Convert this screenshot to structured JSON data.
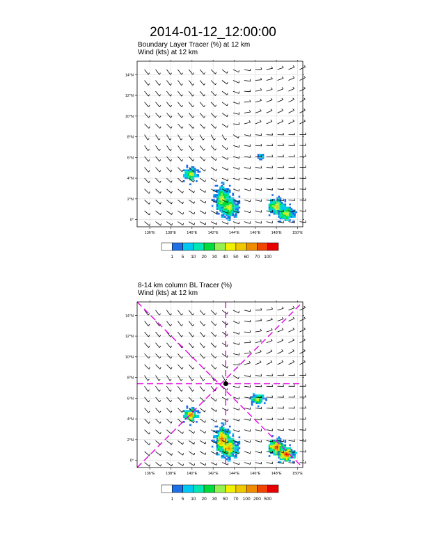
{
  "title": "2014-01-12_12:00:00",
  "colors": {
    "palette": [
      "#ffffff",
      "#1e6ee6",
      "#00c8f0",
      "#00e6b4",
      "#00dc3c",
      "#96f050",
      "#f0f000",
      "#f0c800",
      "#f08c00",
      "#f04600",
      "#e60000"
    ],
    "vortex": "#e100e1",
    "wind": "#000000",
    "grid": "#c8c8c8"
  },
  "panels": [
    {
      "id": "top",
      "subtitle1": "Boundary Layer Tracer   (%)     at   12 km",
      "subtitle2": "Wind   (kts)     at  12 km",
      "lon_ticks": [
        "136°E",
        "138°E",
        "140°E",
        "142°E",
        "144°E",
        "146°E",
        "148°E",
        "150°E"
      ],
      "lat_ticks": [
        "0°",
        "2°N",
        "4°N",
        "6°N",
        "8°N",
        "10°N",
        "12°N",
        "14°N"
      ],
      "colorbar_labels": [
        "1",
        "5",
        "10",
        "20",
        "30",
        "40",
        "50",
        "60",
        "70",
        "100"
      ],
      "show_vortex": false
    },
    {
      "id": "bottom",
      "subtitle1": "8-14 km column BL Tracer   (%)",
      "subtitle2": "Wind   (kts)     at  12 km",
      "lon_ticks": [
        "136°E",
        "138°E",
        "140°E",
        "142°E",
        "144°E",
        "146°E",
        "148°E",
        "150°E"
      ],
      "lat_ticks": [
        "0°",
        "2°N",
        "4°N",
        "6°N",
        "8°N",
        "10°N",
        "12°N",
        "14°N"
      ],
      "colorbar_labels": [
        "1",
        "5",
        "10",
        "20",
        "30",
        "50",
        "70",
        "100",
        "200",
        "500"
      ],
      "show_vortex": true
    }
  ],
  "chart_data": {
    "type": "heatmap",
    "lon_range": [
      134.8,
      150.5
    ],
    "lat_range": [
      -0.7,
      15.3
    ],
    "vortex_center": {
      "lon": 143.2,
      "lat": 7.4
    },
    "tracer_blobs": [
      {
        "lon": 139.9,
        "lat": 4.4,
        "rlon": 0.55,
        "rlat": 0.55,
        "peak_top": 6,
        "peak_bottom": 9
      },
      {
        "lon": 142.9,
        "lat": 2.0,
        "rlon": 0.6,
        "rlat": 1.1,
        "peak_top": 6,
        "peak_bottom": 9
      },
      {
        "lon": 143.5,
        "lat": 1.2,
        "rlon": 0.75,
        "rlat": 0.9,
        "peak_top": 6,
        "peak_bottom": 8
      },
      {
        "lon": 148.0,
        "lat": 1.3,
        "rlon": 0.65,
        "rlat": 0.65,
        "peak_top": 7,
        "peak_bottom": 10
      },
      {
        "lon": 148.9,
        "lat": 0.6,
        "rlon": 0.7,
        "rlat": 0.6,
        "peak_top": 6,
        "peak_bottom": 10
      },
      {
        "lon": 146.5,
        "lat": 6.1,
        "rlon": 0.3,
        "rlat": 0.25,
        "peak_top": 3,
        "peak_bottom": 4
      },
      {
        "lon": 146.2,
        "lat": 5.9,
        "rlon": 0.55,
        "rlat": 0.4,
        "peak_top": 0,
        "peak_bottom": 6
      }
    ]
  }
}
